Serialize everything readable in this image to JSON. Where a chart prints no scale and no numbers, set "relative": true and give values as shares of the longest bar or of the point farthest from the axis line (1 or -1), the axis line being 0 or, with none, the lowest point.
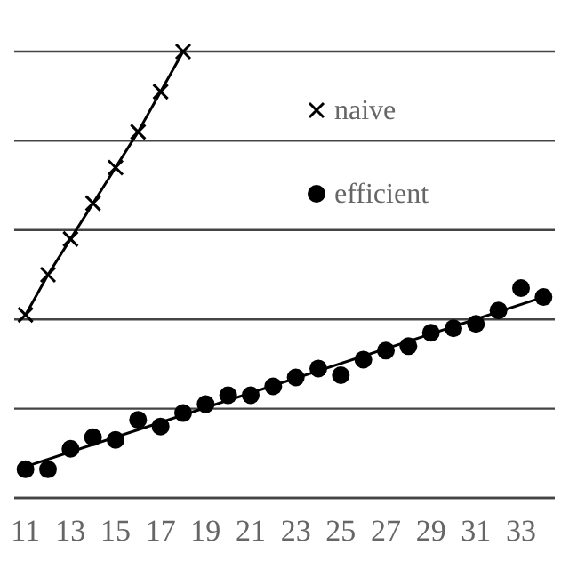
{
  "chart_data": {
    "type": "line",
    "relative": true,
    "grid": true,
    "legend": "top right",
    "xlim": [
      10.5,
      34.5
    ],
    "xticks": [
      11,
      13,
      15,
      17,
      19,
      21,
      23,
      25,
      27,
      29,
      31,
      33
    ],
    "series": [
      {
        "name": "naive",
        "color": "#000000",
        "marker": "cross",
        "x": [
          11,
          12,
          13,
          14,
          15,
          16,
          17,
          18
        ],
        "values": [
          0.41,
          0.5,
          0.58,
          0.66,
          0.74,
          0.82,
          0.91,
          1.0
        ]
      },
      {
        "name": "efficient",
        "type": "scatter",
        "color": "#000000",
        "marker": "circle",
        "x": [
          11,
          12,
          13,
          14,
          15,
          16,
          17,
          18,
          19,
          20,
          21,
          22,
          23,
          24,
          25,
          26,
          27,
          28,
          29,
          30,
          31,
          32,
          33,
          34
        ],
        "values": [
          0.064,
          0.064,
          0.11,
          0.136,
          0.13,
          0.175,
          0.16,
          0.19,
          0.21,
          0.23,
          0.23,
          0.25,
          0.27,
          0.29,
          0.275,
          0.31,
          0.33,
          0.34,
          0.37,
          0.38,
          0.39,
          0.42,
          0.47,
          0.45
        ]
      },
      {
        "type": "line",
        "color": "#000000",
        "marker": "none",
        "x": [
          11,
          34
        ],
        "values": [
          0.07,
          0.45
        ]
      }
    ]
  }
}
